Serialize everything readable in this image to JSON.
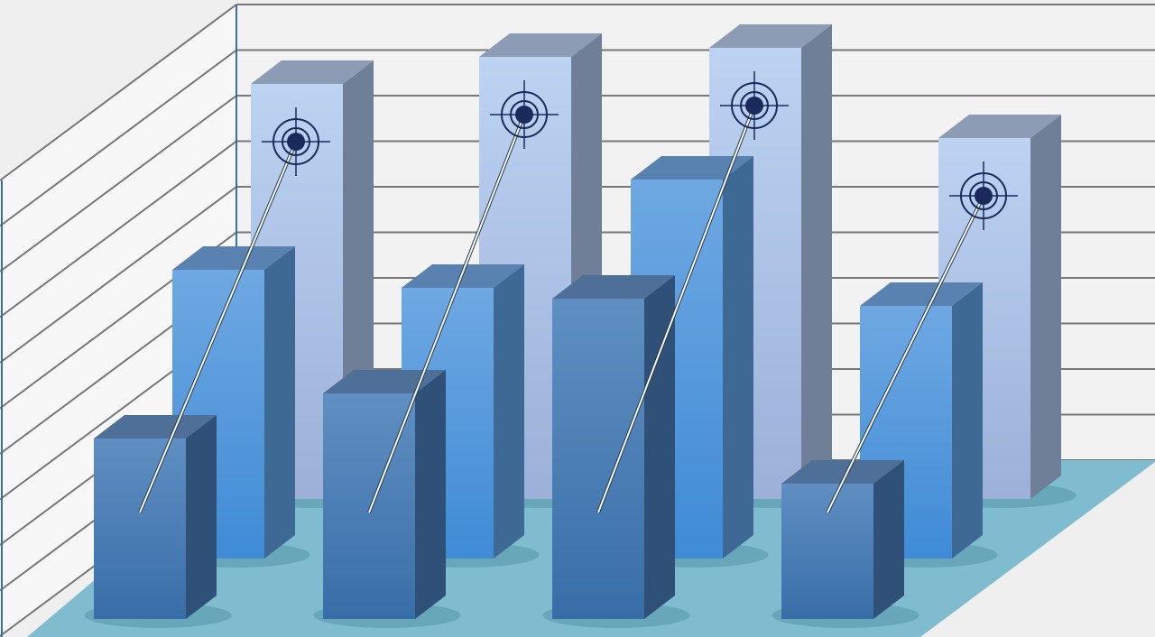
{
  "chart_data": {
    "type": "bar",
    "style": "3d-clustered",
    "title": "",
    "xlabel": "",
    "ylabel": "",
    "categories": [
      "",
      "",
      "",
      ""
    ],
    "series": [
      {
        "values": [
          9.2,
          9.8,
          10.0,
          8.0
        ],
        "color": "#b8cff0"
      },
      {
        "values": [
          6.4,
          6.0,
          8.4,
          5.6
        ],
        "color": "#5a9ee0"
      },
      {
        "values": [
          4.0,
          5.0,
          7.1,
          3.0
        ],
        "color": "#4a7fb8"
      }
    ],
    "ylim": [
      0,
      10.5
    ],
    "grid": true,
    "legend": "none",
    "floor_color": "#7fbcd0",
    "target_marker_color": "#1a2a5a"
  }
}
